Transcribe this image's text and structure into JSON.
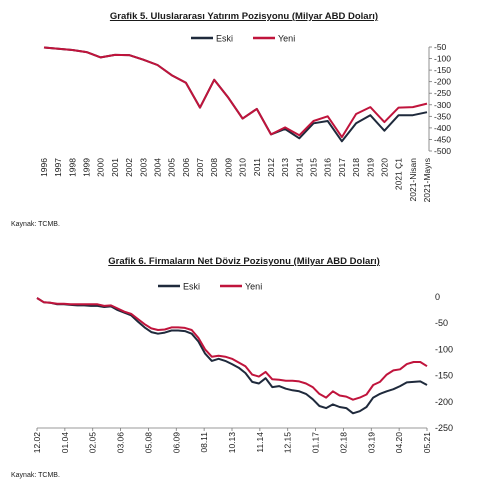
{
  "chart_data": [
    {
      "type": "line",
      "title": "Grafik 5. Uluslararası Yatırım Pozisyonu (Milyar ABD Doları)",
      "source": "Kaynak: TCMB.",
      "categories": [
        "1996",
        "1997",
        "1998",
        "1999",
        "2000",
        "2001",
        "2002",
        "2003",
        "2004",
        "2005",
        "2006",
        "2007",
        "2008",
        "2009",
        "2010",
        "2011",
        "2012",
        "2013",
        "2014",
        "2015",
        "2016",
        "2017",
        "2018",
        "2019",
        "2020",
        "2021 Ç1",
        "2021-Nisan",
        "2021-Mayıs"
      ],
      "series": [
        {
          "name": "Eski",
          "color": "#1f2a3c",
          "values": [
            -52,
            -58,
            -63,
            -72,
            -95,
            -84,
            -85,
            -105,
            -128,
            -172,
            -205,
            -312,
            -192,
            -270,
            -360,
            -318,
            -428,
            -405,
            -445,
            -380,
            -370,
            -458,
            -380,
            -345,
            -412,
            -345,
            -345,
            -332
          ]
        },
        {
          "name": "Yeni",
          "color": "#c0143c",
          "values": [
            -52,
            -58,
            -63,
            -72,
            -95,
            -84,
            -85,
            -105,
            -128,
            -172,
            -205,
            -312,
            -192,
            -270,
            -360,
            -318,
            -428,
            -398,
            -432,
            -370,
            -350,
            -440,
            -340,
            -310,
            -375,
            -312,
            -310,
            -295
          ]
        }
      ],
      "ylim": [
        -500,
        -50
      ],
      "yticks": [
        -50,
        -100,
        -150,
        -200,
        -250,
        -300,
        -350,
        -400,
        -450,
        -500
      ],
      "legend": "top-center",
      "grid": false
    },
    {
      "type": "line",
      "title": "Grafik 6. Firmaların Net Döviz Pozisyonu (Milyar ABD Doları)",
      "source": "Kaynak: TCMB.",
      "x_tick_labels": [
        "12.02",
        "01.04",
        "02.05",
        "03.06",
        "05.08",
        "06.09",
        "08.11",
        "10.13",
        "11.14",
        "12.15",
        "01.17",
        "02.18",
        "03.19",
        "04.20",
        "05.21"
      ],
      "series": [
        {
          "name": "Eski",
          "color": "#1f2a3c",
          "values": [
            -2,
            -10,
            -11,
            -14,
            -14,
            -15,
            -16,
            -16,
            -17,
            -17,
            -19,
            -18,
            -25,
            -30,
            -35,
            -47,
            -58,
            -67,
            -70,
            -68,
            -64,
            -64,
            -65,
            -70,
            -85,
            -108,
            -122,
            -118,
            -122,
            -128,
            -135,
            -145,
            -162,
            -165,
            -155,
            -172,
            -170,
            -175,
            -178,
            -180,
            -185,
            -195,
            -208,
            -212,
            -205,
            -210,
            -212,
            -222,
            -218,
            -210,
            -192,
            -185,
            -180,
            -176,
            -170,
            -163,
            -162,
            -161,
            -168
          ]
        },
        {
          "name": "Yeni",
          "color": "#c0143c",
          "values": [
            -2,
            -10,
            -11,
            -13,
            -13,
            -14,
            -14,
            -14,
            -14,
            -14,
            -17,
            -16,
            -22,
            -28,
            -32,
            -42,
            -52,
            -60,
            -63,
            -62,
            -58,
            -58,
            -59,
            -63,
            -78,
            -100,
            -114,
            -112,
            -114,
            -118,
            -125,
            -132,
            -148,
            -152,
            -143,
            -157,
            -158,
            -160,
            -160,
            -161,
            -165,
            -172,
            -185,
            -192,
            -180,
            -188,
            -190,
            -196,
            -192,
            -186,
            -168,
            -162,
            -148,
            -140,
            -138,
            -128,
            -124,
            -124,
            -132
          ]
        }
      ],
      "ylim": [
        -250,
        0
      ],
      "yticks": [
        0,
        -50,
        -100,
        -150,
        -200,
        -250
      ],
      "legend": "top-center",
      "grid": false
    }
  ]
}
